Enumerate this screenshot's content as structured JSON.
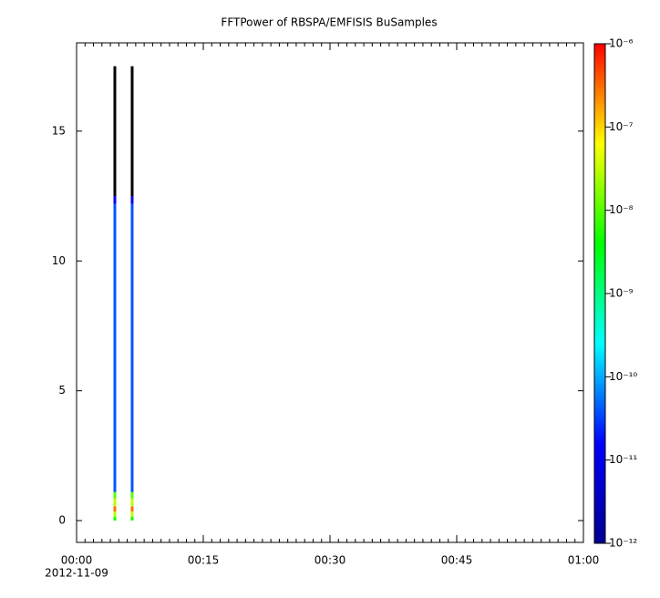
{
  "chart_data": {
    "type": "spectrogram",
    "title": "FFTPower of RBSPA/EMFISIS  BuSamples",
    "xlim": [
      0,
      60
    ],
    "xticks": [
      {
        "value": 0,
        "label": "00:00"
      },
      {
        "value": 15,
        "label": "00:15"
      },
      {
        "value": 30,
        "label": "00:30"
      },
      {
        "value": 45,
        "label": "00:45"
      },
      {
        "value": 60,
        "label": "01:00"
      }
    ],
    "xminorticks": [
      0,
      1,
      2,
      3,
      4,
      5,
      6,
      7,
      8,
      9,
      10,
      11,
      12,
      13,
      14,
      15,
      16,
      17,
      18,
      19,
      20,
      21,
      22,
      23,
      24,
      25,
      26,
      27,
      28,
      29,
      30,
      31,
      32,
      33,
      34,
      35,
      36,
      37,
      38,
      39,
      40,
      41,
      42,
      43,
      44,
      45,
      46,
      47,
      48,
      49,
      50,
      51,
      52,
      53,
      54,
      55,
      56,
      57,
      58,
      59,
      60
    ],
    "date_label": "2012-11-09",
    "ylim": [
      -0.84,
      18.4
    ],
    "yticks": [
      0,
      5,
      10,
      15
    ],
    "zlim": [
      1e-12,
      1e-06
    ],
    "zscale": "log",
    "zticks": [
      {
        "value": 1e-12,
        "label": "10⁻¹²"
      },
      {
        "value": 1e-11,
        "label": "10⁻¹¹"
      },
      {
        "value": 1e-10,
        "label": "10⁻¹⁰"
      },
      {
        "value": 1e-09,
        "label": "10⁻⁹"
      },
      {
        "value": 1e-08,
        "label": "10⁻⁸"
      },
      {
        "value": 1e-07,
        "label": "10⁻⁷"
      },
      {
        "value": 1e-06,
        "label": "10⁻⁶"
      }
    ],
    "colormap": [
      "#00008f",
      "#0000ff",
      "#00ffff",
      "#00ff00",
      "#ffff00",
      "#ff0000"
    ],
    "under_color": "#000000",
    "spectra": [
      {
        "x": 4.53,
        "bins": [
          0,
          0.15,
          0.35,
          0.55,
          0.85,
          1.1,
          12.2,
          12.5,
          17.5
        ],
        "values": [
          5e-09,
          3e-08,
          3e-07,
          3e-08,
          1e-08,
          4e-11,
          1e-11,
          1e-13
        ]
      },
      {
        "x": 6.58,
        "bins": [
          0,
          0.15,
          0.35,
          0.55,
          0.85,
          1.1,
          12.2,
          12.5,
          17.5
        ],
        "values": [
          5e-09,
          3e-08,
          3e-07,
          3e-08,
          1e-08,
          4e-11,
          1e-11,
          1e-13
        ]
      }
    ]
  }
}
